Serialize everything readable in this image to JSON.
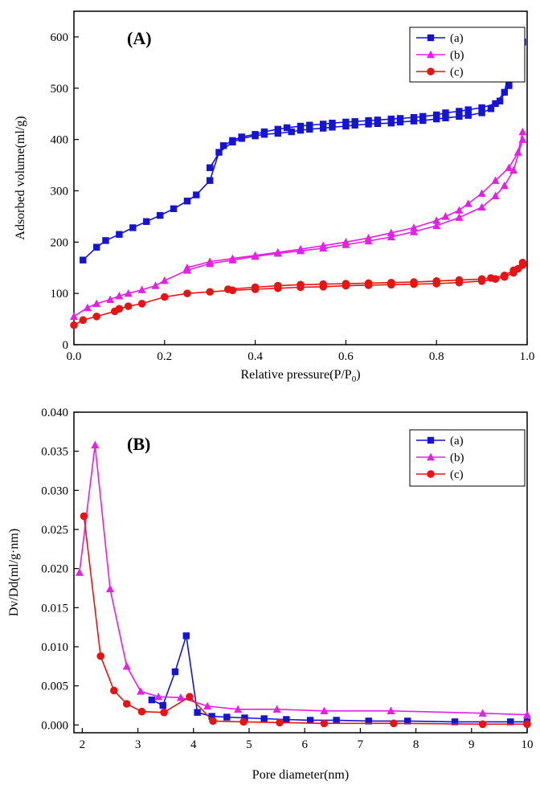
{
  "chart_data": [
    {
      "type": "line",
      "panel_label": "(A)",
      "xlabel": "Relative pressure(P/P",
      "xlabel_sub": "0",
      "xlabel_end": ")",
      "ylabel": "Adsorbed volume(ml/g)",
      "xlim": [
        0,
        1.0
      ],
      "ylim": [
        0,
        650
      ],
      "xticks": [
        0.0,
        0.2,
        0.4,
        0.6,
        0.8,
        1.0
      ],
      "xtick_labels": [
        "0.0",
        "0.2",
        "0.4",
        "0.6",
        "0.8",
        "1.0"
      ],
      "yticks": [
        0,
        100,
        200,
        300,
        400,
        500,
        600
      ],
      "ytick_labels": [
        "0",
        "100",
        "200",
        "300",
        "400",
        "500",
        "600"
      ],
      "legend_position": "top-right",
      "series": [
        {
          "name": "(a)",
          "color": "#1414d2",
          "marker": "square",
          "branches": [
            {
              "x": [
                0.02,
                0.05,
                0.07,
                0.1,
                0.13,
                0.16,
                0.19,
                0.22,
                0.25,
                0.27,
                0.3,
                0.32,
                0.35,
                0.37,
                0.4,
                0.42,
                0.45,
                0.48,
                0.5,
                0.52,
                0.55,
                0.57,
                0.6,
                0.62,
                0.65,
                0.67,
                0.7,
                0.72,
                0.75,
                0.77,
                0.8,
                0.82,
                0.85,
                0.87,
                0.9,
                0.92,
                0.94,
                0.96,
                0.98,
                0.99
              ],
              "y": [
                165,
                190,
                203,
                215,
                228,
                240,
                252,
                265,
                280,
                292,
                320,
                375,
                395,
                402,
                407,
                410,
                412,
                415,
                418,
                420,
                422,
                424,
                426,
                428,
                430,
                431,
                432,
                434,
                436,
                437,
                440,
                442,
                445,
                447,
                452,
                460,
                475,
                505,
                580,
                590
              ]
            },
            {
              "x": [
                0.99,
                0.97,
                0.95,
                0.93,
                0.9,
                0.87,
                0.85,
                0.82,
                0.8,
                0.77,
                0.75,
                0.72,
                0.7,
                0.67,
                0.65,
                0.62,
                0.6,
                0.57,
                0.55,
                0.52,
                0.5,
                0.47,
                0.45,
                0.42,
                0.4,
                0.37,
                0.35,
                0.33,
                0.3
              ],
              "y": [
                590,
                580,
                492,
                470,
                462,
                458,
                455,
                452,
                448,
                445,
                443,
                441,
                440,
                438,
                437,
                435,
                434,
                432,
                430,
                428,
                426,
                423,
                420,
                415,
                410,
                405,
                398,
                388,
                345
              ]
            }
          ]
        },
        {
          "name": "(b)",
          "color": "#e61ee6",
          "marker": "triangle",
          "branches": [
            {
              "x": [
                0.0,
                0.03,
                0.05,
                0.08,
                0.1,
                0.12,
                0.15,
                0.18,
                0.2,
                0.25,
                0.3,
                0.35,
                0.4,
                0.45,
                0.5,
                0.55,
                0.6,
                0.65,
                0.7,
                0.75,
                0.8,
                0.85,
                0.9,
                0.93,
                0.95,
                0.97,
                0.99
              ],
              "y": [
                55,
                72,
                80,
                88,
                95,
                100,
                107,
                115,
                125,
                145,
                158,
                165,
                172,
                178,
                183,
                188,
                195,
                202,
                210,
                220,
                232,
                248,
                268,
                290,
                310,
                340,
                400
              ]
            },
            {
              "x": [
                0.99,
                0.98,
                0.96,
                0.93,
                0.9,
                0.87,
                0.85,
                0.82,
                0.8,
                0.75,
                0.7,
                0.65,
                0.6,
                0.55,
                0.5,
                0.45,
                0.4,
                0.35,
                0.3,
                0.25
              ],
              "y": [
                415,
                375,
                345,
                320,
                295,
                275,
                262,
                250,
                242,
                228,
                218,
                208,
                200,
                193,
                186,
                180,
                174,
                168,
                162,
                150
              ]
            }
          ]
        },
        {
          "name": "(c)",
          "color": "#e61414",
          "marker": "circle",
          "branches": [
            {
              "x": [
                0.0,
                0.02,
                0.05,
                0.09,
                0.1,
                0.12,
                0.15,
                0.2,
                0.25,
                0.3,
                0.35,
                0.4,
                0.45,
                0.5,
                0.55,
                0.6,
                0.65,
                0.7,
                0.75,
                0.8,
                0.85,
                0.9,
                0.93,
                0.95,
                0.97,
                0.98,
                0.99
              ],
              "y": [
                38,
                48,
                55,
                65,
                70,
                75,
                80,
                93,
                100,
                103,
                106,
                108,
                110,
                112,
                113,
                115,
                116,
                117,
                118,
                119,
                121,
                124,
                128,
                132,
                140,
                148,
                160
              ]
            },
            {
              "x": [
                0.99,
                0.97,
                0.95,
                0.92,
                0.9,
                0.85,
                0.8,
                0.75,
                0.7,
                0.65,
                0.6,
                0.55,
                0.5,
                0.45,
                0.4,
                0.34
              ],
              "y": [
                155,
                145,
                135,
                130,
                128,
                126,
                124,
                122,
                121,
                120,
                119,
                118,
                117,
                115,
                112,
                108
              ]
            }
          ]
        }
      ]
    },
    {
      "type": "line",
      "panel_label": "(B)",
      "xlabel": "Pore diameter(nm)",
      "ylabel": "Dv/Dd(ml/g·nm)",
      "xlim": [
        1.85,
        10
      ],
      "ylim": [
        -0.001,
        0.04
      ],
      "xticks": [
        2,
        3,
        4,
        5,
        6,
        7,
        8,
        9,
        10
      ],
      "xtick_labels": [
        "2",
        "3",
        "4",
        "5",
        "6",
        "7",
        "8",
        "9",
        "10"
      ],
      "yticks": [
        0.0,
        0.005,
        0.01,
        0.015,
        0.02,
        0.025,
        0.03,
        0.035,
        0.04
      ],
      "ytick_labels": [
        "0.000",
        "0.005",
        "0.010",
        "0.015",
        "0.020",
        "0.025",
        "0.030",
        "0.035",
        "0.040"
      ],
      "legend_position": "top-right",
      "series": [
        {
          "name": "(a)",
          "color": "#1414d2",
          "marker": "square",
          "x": [
            3.25,
            3.45,
            3.67,
            3.87,
            4.07,
            4.33,
            4.6,
            4.92,
            5.27,
            5.67,
            6.1,
            6.57,
            7.15,
            7.85,
            8.7,
            9.7,
            10.0
          ],
          "y": [
            0.0032,
            0.0025,
            0.0068,
            0.0114,
            0.0016,
            0.0011,
            0.001,
            0.0009,
            0.0008,
            0.0007,
            0.0006,
            0.0006,
            0.0005,
            0.0005,
            0.0004,
            0.0004,
            0.0004
          ]
        },
        {
          "name": "(b)",
          "color": "#e61ee6",
          "marker": "triangle",
          "x": [
            1.95,
            2.23,
            2.5,
            2.8,
            3.05,
            3.37,
            3.77,
            4.25,
            4.8,
            5.5,
            6.35,
            7.55,
            9.2,
            10.0
          ],
          "y": [
            0.0195,
            0.0358,
            0.0174,
            0.0075,
            0.0043,
            0.0036,
            0.0035,
            0.0024,
            0.002,
            0.002,
            0.0018,
            0.0018,
            0.0015,
            0.0013
          ]
        },
        {
          "name": "(c)",
          "color": "#e61414",
          "marker": "circle",
          "x": [
            2.03,
            2.33,
            2.57,
            2.8,
            3.07,
            3.47,
            3.93,
            4.35,
            4.9,
            5.55,
            6.35,
            7.6,
            9.2,
            10.0
          ],
          "y": [
            0.0267,
            0.0088,
            0.0044,
            0.0027,
            0.0017,
            0.0016,
            0.0036,
            0.0005,
            0.0004,
            0.0003,
            0.0002,
            0.0002,
            0.0001,
            0.0001
          ]
        }
      ]
    }
  ]
}
